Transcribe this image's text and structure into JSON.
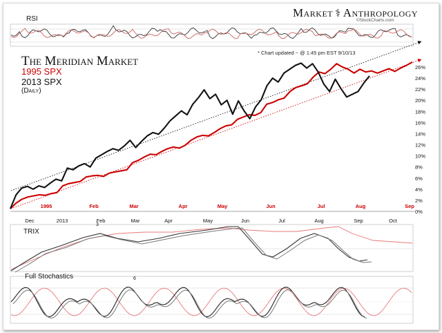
{
  "brand": {
    "left": "Market",
    "mid": "⚕",
    "right": "Anthropology",
    "credit": "©StockCharts.com"
  },
  "panels": {
    "rsi_label": "RSI",
    "trix_label": "TRIX",
    "stoch_label": "Full Stochastics",
    "stoch_marker": "6",
    "trix_marker": "3"
  },
  "note": "* Chart updated ~ @ 1:45 pm EST 9/10/13",
  "colors": {
    "spx1995": "#cc0000",
    "spx2013": "#111111",
    "rsi_fill": "#e8b4b4",
    "stoch_red": "#e87878",
    "grid": "#cfcfcf"
  },
  "chart_data": {
    "type": "line",
    "title": "The Meridian Market",
    "legend": [
      "1995 SPX",
      "2013 SPX",
      "(Daily)"
    ],
    "y_axis_ticks": [
      "0%",
      "2%",
      "4%",
      "6%",
      "8%",
      "10%",
      "12%",
      "14%",
      "16%",
      "18%",
      "20%",
      "22%",
      "24%",
      "26%"
    ],
    "ylim": [
      0,
      26
    ],
    "x_axis_1995": [
      "1995",
      "Feb",
      "Mar",
      "Apr",
      "May",
      "Jun",
      "Jul",
      "Aug",
      "Sep"
    ],
    "x_axis_2013": [
      "Dec",
      "2013",
      "Feb",
      "Mar",
      "Apr",
      "May",
      "Jun",
      "Jul",
      "Aug",
      "Sep",
      "Oct"
    ],
    "series": [
      {
        "name": "1995 SPX",
        "color": "#cc0000",
        "values": [
          0.5,
          1.5,
          2.2,
          2.6,
          2.8,
          3.0,
          2.9,
          3.2,
          3.4,
          4.6,
          5.0,
          5.2,
          5.4,
          6.2,
          6.4,
          6.5,
          6.3,
          6.9,
          7.1,
          7.3,
          7.5,
          8.8,
          9.2,
          9.8,
          10.3,
          10.2,
          10.8,
          11.3,
          11.6,
          11.4,
          11.9,
          12.8,
          13.4,
          13.7,
          13.6,
          14.2,
          14.9,
          15.4,
          15.6,
          16.6,
          17.0,
          17.4,
          17.3,
          17.8,
          19.3,
          19.6,
          20.1,
          20.4,
          21.6,
          22.3,
          22.6,
          23.0,
          24.2,
          25.1,
          24.8,
          25.6,
          26.6,
          26.0,
          25.6,
          24.9,
          25.6,
          25.1,
          25.3,
          24.9,
          25.3,
          25.7,
          25.2,
          25.8,
          26.3,
          26.9
        ]
      },
      {
        "name": "2013 SPX",
        "color": "#111111",
        "values": [
          0.5,
          3.0,
          4.2,
          4.5,
          4.0,
          4.6,
          4.3,
          5.1,
          5.8,
          5.5,
          7.8,
          7.5,
          8.2,
          8.6,
          8.0,
          9.6,
          10.2,
          10.8,
          11.3,
          11.0,
          11.8,
          12.8,
          11.5,
          12.6,
          13.6,
          14.2,
          13.9,
          15.0,
          16.3,
          17.2,
          18.1,
          17.4,
          19.3,
          20.5,
          21.9,
          20.3,
          21.1,
          19.2,
          20.0,
          17.5,
          19.9,
          18.1,
          16.7,
          18.8,
          20.1,
          22.6,
          24.0,
          23.3,
          24.9,
          25.6,
          26.3,
          26.7,
          25.8,
          26.6,
          25.1,
          22.9,
          21.6,
          23.8,
          22.1,
          20.6,
          21.1,
          21.6,
          23.1,
          24.4
        ]
      }
    ],
    "trendlines": [
      "upper channel (dotted black)",
      "lower channel (dotted red)"
    ]
  }
}
